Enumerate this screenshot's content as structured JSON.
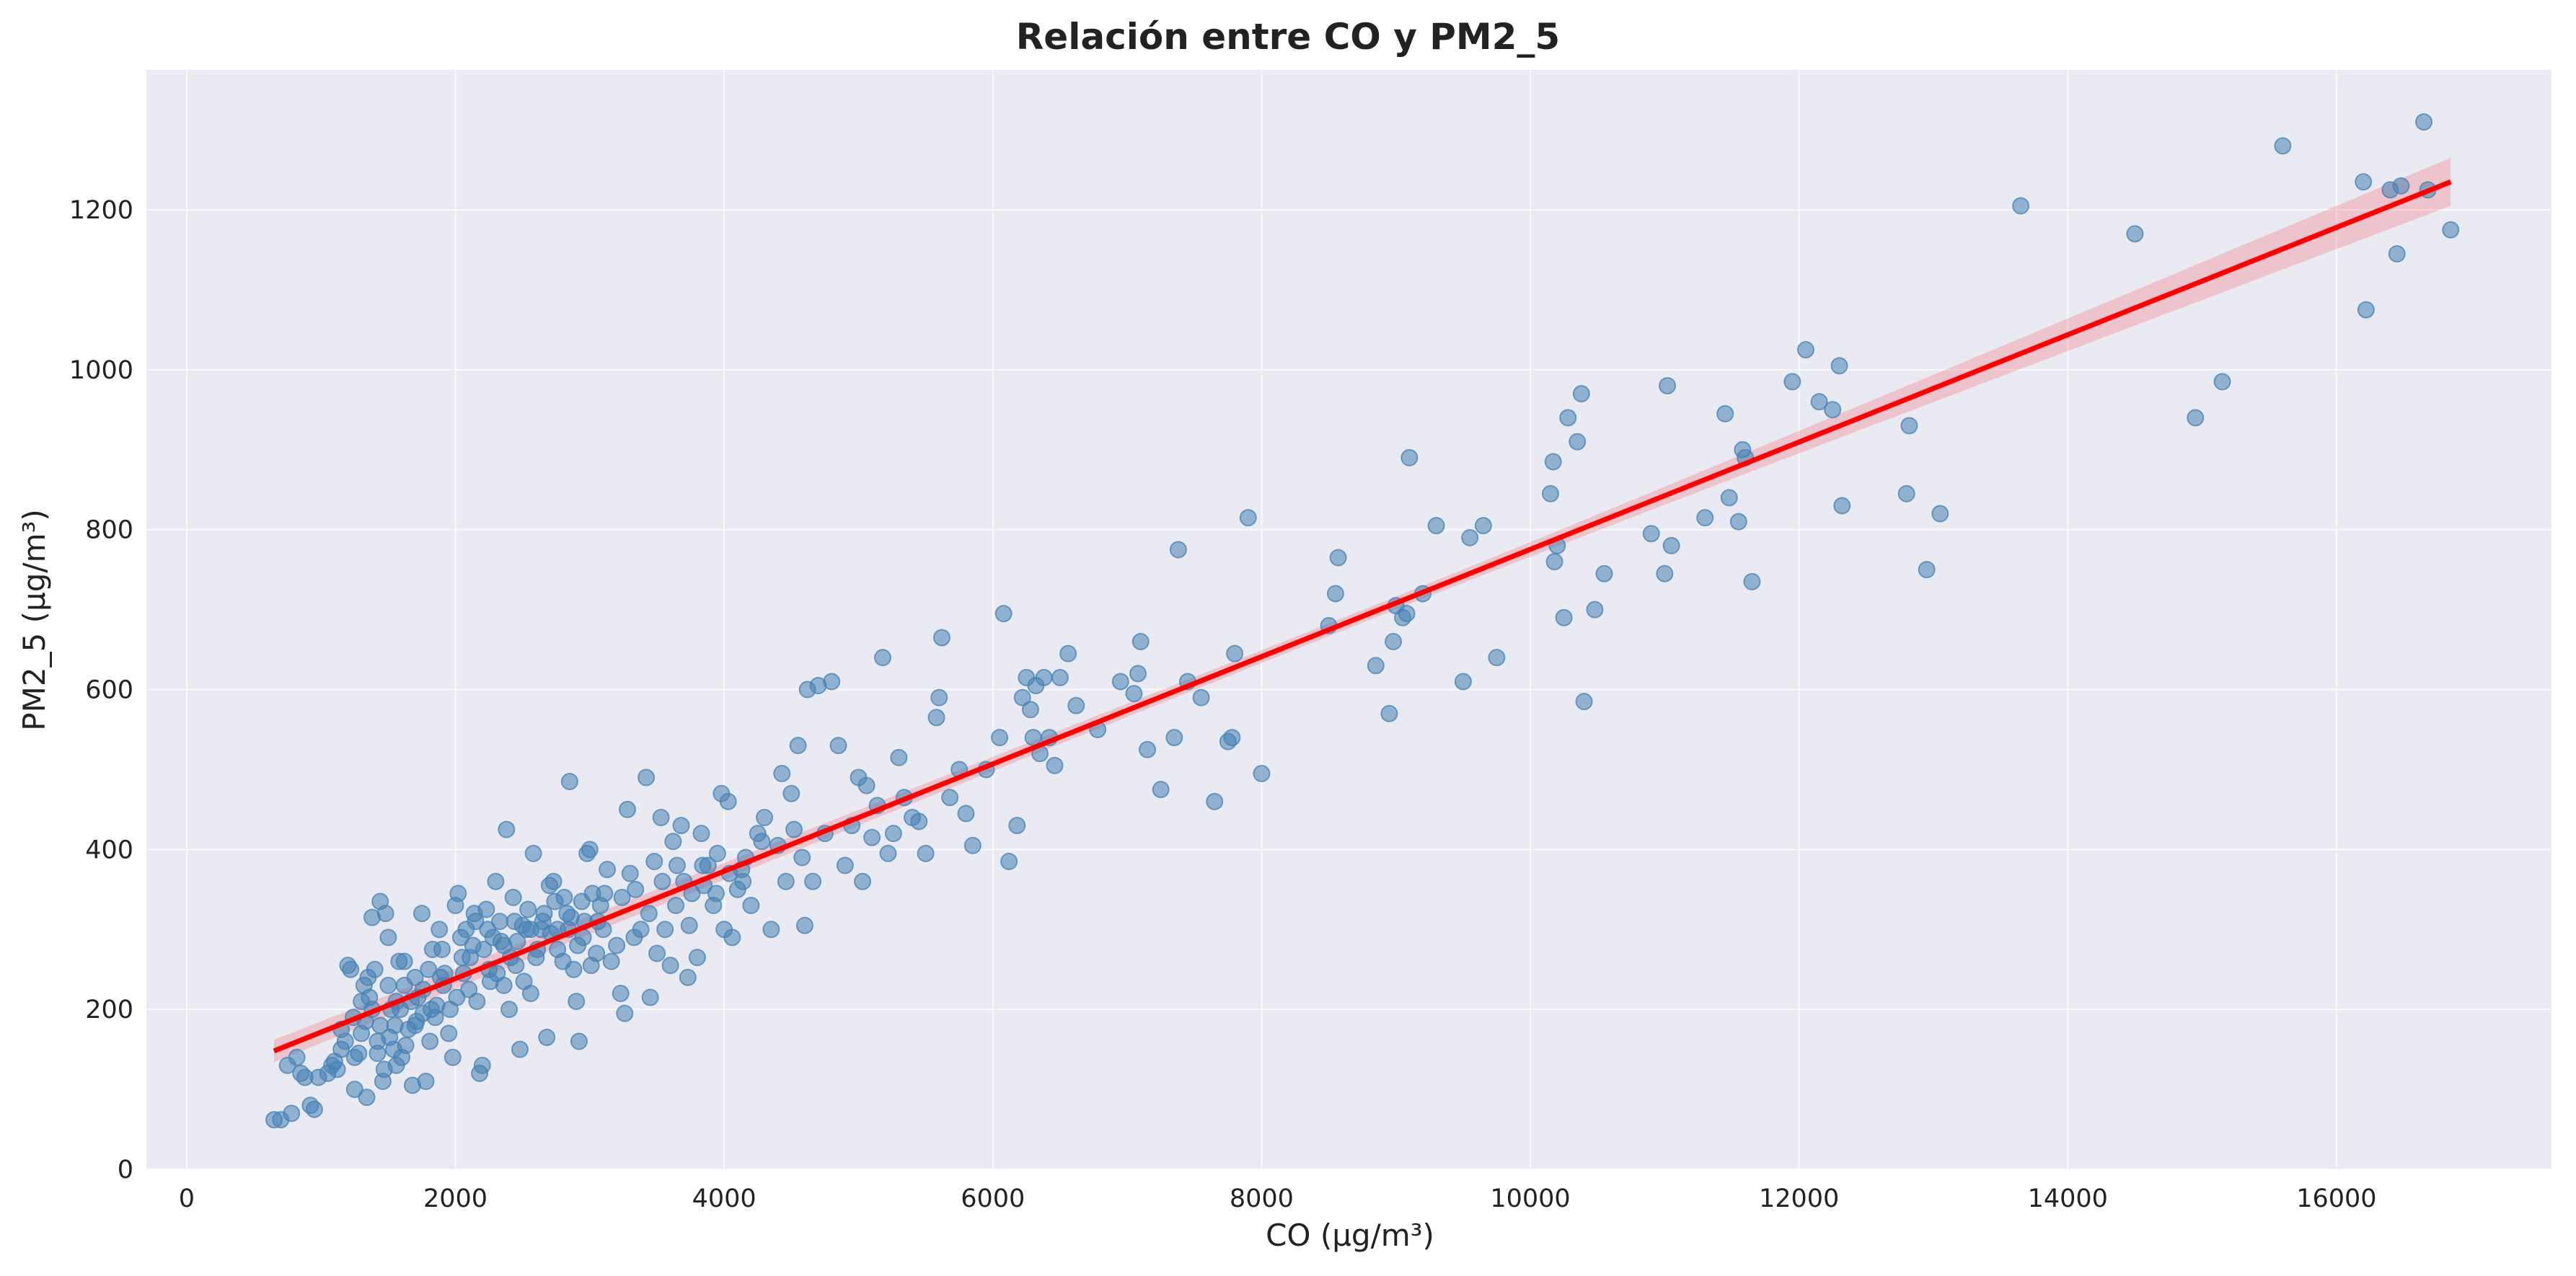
{
  "chart_data": {
    "type": "scatter",
    "title": "Relación entre CO y PM2_5",
    "xlabel": "CO (μg/m³)",
    "ylabel": "PM2_5 (μg/m³)",
    "xlim": [
      -300,
      17600
    ],
    "ylim": [
      0,
      1375
    ],
    "xticks": [
      0,
      2000,
      4000,
      6000,
      8000,
      10000,
      12000,
      14000,
      16000
    ],
    "yticks": [
      0,
      200,
      400,
      600,
      800,
      1000,
      1200
    ],
    "grid": true,
    "colors": {
      "points": "#4682b4",
      "fit_line": "#ff0000",
      "background": "#eaeaf2"
    },
    "regression": {
      "x": [
        650,
        16850
      ],
      "y": [
        148,
        1235
      ],
      "ci_half_width_at_ends": [
        14,
        30
      ],
      "ci_half_width_mid": 8
    },
    "points": [
      [
        650,
        62
      ],
      [
        700,
        62
      ],
      [
        750,
        130
      ],
      [
        780,
        70
      ],
      [
        820,
        140
      ],
      [
        850,
        120
      ],
      [
        880,
        115
      ],
      [
        920,
        80
      ],
      [
        950,
        75
      ],
      [
        980,
        115
      ],
      [
        1050,
        120
      ],
      [
        1080,
        130
      ],
      [
        1100,
        135
      ],
      [
        1120,
        125
      ],
      [
        1150,
        150
      ],
      [
        1180,
        160
      ],
      [
        1200,
        255
      ],
      [
        1220,
        250
      ],
      [
        1240,
        190
      ],
      [
        1250,
        100
      ],
      [
        1280,
        145
      ],
      [
        1300,
        210
      ],
      [
        1320,
        230
      ],
      [
        1340,
        90
      ],
      [
        1350,
        240
      ],
      [
        1380,
        315
      ],
      [
        1400,
        250
      ],
      [
        1420,
        160
      ],
      [
        1440,
        335
      ],
      [
        1460,
        110
      ],
      [
        1480,
        320
      ],
      [
        1500,
        290
      ],
      [
        1520,
        200
      ],
      [
        1540,
        150
      ],
      [
        1560,
        130
      ],
      [
        1580,
        260
      ],
      [
        1600,
        140
      ],
      [
        1620,
        230
      ],
      [
        1650,
        175
      ],
      [
        1680,
        105
      ],
      [
        1700,
        180
      ],
      [
        1720,
        215
      ],
      [
        1750,
        320
      ],
      [
        1780,
        110
      ],
      [
        1800,
        250
      ],
      [
        1820,
        200
      ],
      [
        1850,
        190
      ],
      [
        1880,
        300
      ],
      [
        1900,
        275
      ],
      [
        1920,
        245
      ],
      [
        1950,
        170
      ],
      [
        1980,
        140
      ],
      [
        2000,
        330
      ],
      [
        2020,
        345
      ],
      [
        2050,
        265
      ],
      [
        2080,
        300
      ],
      [
        2100,
        225
      ],
      [
        2130,
        280
      ],
      [
        2150,
        310
      ],
      [
        2180,
        120
      ],
      [
        2200,
        130
      ],
      [
        2230,
        325
      ],
      [
        2250,
        250
      ],
      [
        2280,
        290
      ],
      [
        2300,
        360
      ],
      [
        2330,
        310
      ],
      [
        2360,
        230
      ],
      [
        2380,
        425
      ],
      [
        2400,
        200
      ],
      [
        2430,
        340
      ],
      [
        2450,
        255
      ],
      [
        2480,
        150
      ],
      [
        2500,
        305
      ],
      [
        2530,
        300
      ],
      [
        2560,
        220
      ],
      [
        2580,
        395
      ],
      [
        2600,
        265
      ],
      [
        2650,
        310
      ],
      [
        2680,
        165
      ],
      [
        2700,
        355
      ],
      [
        2730,
        360
      ],
      [
        2760,
        300
      ],
      [
        2800,
        260
      ],
      [
        2830,
        320
      ],
      [
        2850,
        485
      ],
      [
        2880,
        250
      ],
      [
        2900,
        210
      ],
      [
        2920,
        160
      ],
      [
        2950,
        290
      ],
      [
        2980,
        395
      ],
      [
        3000,
        400
      ],
      [
        3020,
        345
      ],
      [
        3050,
        270
      ],
      [
        3080,
        330
      ],
      [
        3100,
        300
      ],
      [
        3130,
        375
      ],
      [
        3160,
        260
      ],
      [
        3200,
        280
      ],
      [
        3230,
        220
      ],
      [
        3260,
        195
      ],
      [
        3280,
        450
      ],
      [
        3300,
        370
      ],
      [
        3340,
        350
      ],
      [
        3380,
        300
      ],
      [
        3420,
        490
      ],
      [
        3450,
        215
      ],
      [
        3480,
        385
      ],
      [
        3500,
        270
      ],
      [
        3530,
        440
      ],
      [
        3560,
        300
      ],
      [
        3600,
        255
      ],
      [
        3620,
        410
      ],
      [
        3650,
        380
      ],
      [
        3680,
        430
      ],
      [
        3700,
        360
      ],
      [
        3730,
        240
      ],
      [
        3760,
        345
      ],
      [
        3800,
        265
      ],
      [
        3830,
        420
      ],
      [
        3850,
        355
      ],
      [
        3880,
        380
      ],
      [
        3920,
        330
      ],
      [
        3950,
        395
      ],
      [
        3980,
        470
      ],
      [
        4000,
        300
      ],
      [
        4030,
        460
      ],
      [
        4060,
        290
      ],
      [
        4100,
        350
      ],
      [
        4130,
        375
      ],
      [
        4160,
        390
      ],
      [
        4200,
        330
      ],
      [
        4250,
        420
      ],
      [
        4280,
        410
      ],
      [
        4300,
        440
      ],
      [
        4350,
        300
      ],
      [
        4400,
        405
      ],
      [
        4430,
        495
      ],
      [
        4460,
        360
      ],
      [
        4500,
        470
      ],
      [
        4520,
        425
      ],
      [
        4550,
        530
      ],
      [
        4580,
        390
      ],
      [
        4600,
        305
      ],
      [
        4620,
        600
      ],
      [
        4660,
        360
      ],
      [
        4700,
        605
      ],
      [
        4750,
        420
      ],
      [
        4800,
        610
      ],
      [
        4850,
        530
      ],
      [
        4900,
        380
      ],
      [
        4950,
        430
      ],
      [
        5000,
        490
      ],
      [
        5030,
        360
      ],
      [
        5060,
        480
      ],
      [
        5100,
        415
      ],
      [
        5140,
        455
      ],
      [
        5180,
        640
      ],
      [
        5220,
        395
      ],
      [
        5260,
        420
      ],
      [
        5300,
        515
      ],
      [
        5340,
        465
      ],
      [
        5400,
        440
      ],
      [
        5450,
        435
      ],
      [
        5500,
        395
      ],
      [
        5580,
        565
      ],
      [
        5600,
        590
      ],
      [
        5620,
        665
      ],
      [
        5680,
        465
      ],
      [
        5750,
        500
      ],
      [
        5800,
        445
      ],
      [
        5850,
        405
      ],
      [
        5950,
        500
      ],
      [
        6050,
        540
      ],
      [
        6080,
        695
      ],
      [
        6120,
        385
      ],
      [
        6180,
        430
      ],
      [
        6220,
        590
      ],
      [
        6250,
        615
      ],
      [
        6280,
        575
      ],
      [
        6300,
        540
      ],
      [
        6320,
        605
      ],
      [
        6350,
        520
      ],
      [
        6380,
        615
      ],
      [
        6420,
        540
      ],
      [
        6460,
        505
      ],
      [
        6500,
        615
      ],
      [
        6560,
        645
      ],
      [
        6620,
        580
      ],
      [
        6780,
        550
      ],
      [
        6950,
        610
      ],
      [
        7050,
        595
      ],
      [
        7080,
        620
      ],
      [
        7100,
        660
      ],
      [
        7150,
        525
      ],
      [
        7250,
        475
      ],
      [
        7350,
        540
      ],
      [
        7380,
        775
      ],
      [
        7450,
        610
      ],
      [
        7550,
        590
      ],
      [
        7650,
        460
      ],
      [
        7750,
        535
      ],
      [
        7780,
        540
      ],
      [
        7800,
        645
      ],
      [
        7900,
        815
      ],
      [
        8000,
        495
      ],
      [
        8500,
        680
      ],
      [
        8550,
        720
      ],
      [
        8570,
        765
      ],
      [
        8850,
        630
      ],
      [
        8950,
        570
      ],
      [
        8980,
        660
      ],
      [
        9000,
        705
      ],
      [
        9050,
        690
      ],
      [
        9080,
        695
      ],
      [
        9100,
        890
      ],
      [
        9200,
        720
      ],
      [
        9300,
        805
      ],
      [
        9500,
        610
      ],
      [
        9550,
        790
      ],
      [
        9650,
        805
      ],
      [
        9750,
        640
      ],
      [
        10150,
        845
      ],
      [
        10170,
        885
      ],
      [
        10180,
        760
      ],
      [
        10200,
        780
      ],
      [
        10250,
        690
      ],
      [
        10280,
        940
      ],
      [
        10350,
        910
      ],
      [
        10380,
        970
      ],
      [
        10400,
        585
      ],
      [
        10480,
        700
      ],
      [
        10550,
        745
      ],
      [
        10900,
        795
      ],
      [
        11000,
        745
      ],
      [
        11020,
        980
      ],
      [
        11050,
        780
      ],
      [
        11300,
        815
      ],
      [
        11450,
        945
      ],
      [
        11480,
        840
      ],
      [
        11550,
        810
      ],
      [
        11580,
        900
      ],
      [
        11600,
        890
      ],
      [
        11650,
        735
      ],
      [
        11950,
        985
      ],
      [
        12050,
        1025
      ],
      [
        12150,
        960
      ],
      [
        12250,
        950
      ],
      [
        12300,
        1005
      ],
      [
        12320,
        830
      ],
      [
        12800,
        845
      ],
      [
        12820,
        930
      ],
      [
        12950,
        750
      ],
      [
        13050,
        820
      ],
      [
        13650,
        1205
      ],
      [
        14500,
        1170
      ],
      [
        14950,
        940
      ],
      [
        15150,
        985
      ],
      [
        15600,
        1280
      ],
      [
        16200,
        1235
      ],
      [
        16220,
        1075
      ],
      [
        16400,
        1225
      ],
      [
        16450,
        1145
      ],
      [
        16480,
        1230
      ],
      [
        16650,
        1310
      ],
      [
        16680,
        1225
      ],
      [
        16850,
        1175
      ],
      [
        1150,
        175
      ],
      [
        1250,
        140
      ],
      [
        1330,
        185
      ],
      [
        1380,
        200
      ],
      [
        1420,
        145
      ],
      [
        1470,
        125
      ],
      [
        1510,
        165
      ],
      [
        1550,
        180
      ],
      [
        1590,
        200
      ],
      [
        1630,
        155
      ],
      [
        1670,
        210
      ],
      [
        1710,
        185
      ],
      [
        1760,
        225
      ],
      [
        1810,
        160
      ],
      [
        1860,
        205
      ],
      [
        1910,
        230
      ],
      [
        1960,
        200
      ],
      [
        2010,
        215
      ],
      [
        2060,
        245
      ],
      [
        2110,
        265
      ],
      [
        2160,
        210
      ],
      [
        2210,
        275
      ],
      [
        2260,
        235
      ],
      [
        2310,
        245
      ],
      [
        2360,
        280
      ],
      [
        2410,
        265
      ],
      [
        2460,
        285
      ],
      [
        2510,
        235
      ],
      [
        2560,
        300
      ],
      [
        2610,
        275
      ],
      [
        2660,
        320
      ],
      [
        2710,
        295
      ],
      [
        2760,
        275
      ],
      [
        2810,
        340
      ],
      [
        2860,
        315
      ],
      [
        2910,
        280
      ],
      [
        2960,
        310
      ],
      [
        3010,
        255
      ],
      [
        3060,
        310
      ],
      [
        3110,
        345
      ],
      [
        1300,
        170
      ],
      [
        1360,
        215
      ],
      [
        1440,
        180
      ],
      [
        1500,
        230
      ],
      [
        1560,
        210
      ],
      [
        1620,
        260
      ],
      [
        1700,
        240
      ],
      [
        1760,
        195
      ],
      [
        1830,
        275
      ],
      [
        1890,
        240
      ],
      [
        2040,
        290
      ],
      [
        2140,
        320
      ],
      [
        2240,
        300
      ],
      [
        2340,
        285
      ],
      [
        2440,
        310
      ],
      [
        2540,
        325
      ],
      [
        2640,
        300
      ],
      [
        2740,
        335
      ],
      [
        2840,
        300
      ],
      [
        2940,
        335
      ],
      [
        3240,
        340
      ],
      [
        3330,
        290
      ],
      [
        3440,
        320
      ],
      [
        3540,
        360
      ],
      [
        3640,
        330
      ],
      [
        3740,
        305
      ],
      [
        3840,
        380
      ],
      [
        3940,
        345
      ],
      [
        4040,
        370
      ],
      [
        4140,
        360
      ]
    ]
  }
}
